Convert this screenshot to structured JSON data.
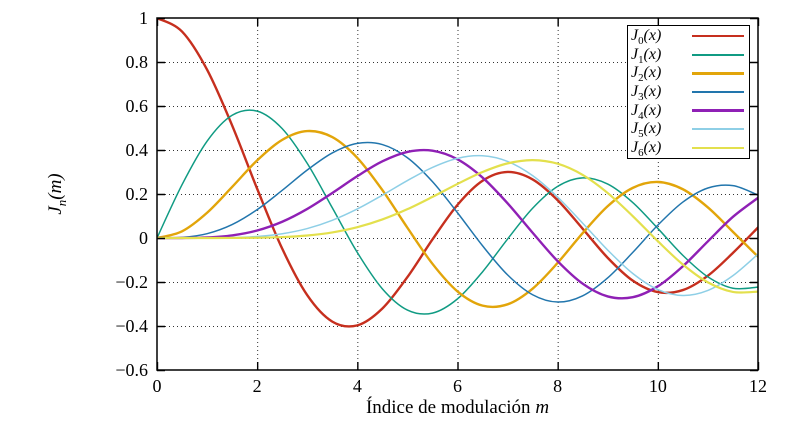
{
  "chart_data": {
    "type": "line",
    "title": "",
    "xlabel": "Índice de modulación m",
    "xlabel_parts": {
      "text": "Índice de modulación",
      "var": "m"
    },
    "ylabel": "Jn(m)",
    "ylabel_parts": {
      "base": "J",
      "sub": "n",
      "rest": "(m)"
    },
    "xlim": [
      0,
      12
    ],
    "ylim": [
      -0.6,
      1
    ],
    "x_ticks": [
      0,
      2,
      4,
      6,
      8,
      10,
      12
    ],
    "x_tick_labels": [
      "0",
      "2",
      "4",
      "6",
      "8",
      "10",
      "12"
    ],
    "y_ticks": [
      1,
      0.8,
      0.6,
      0.4,
      0.2,
      0,
      -0.2,
      -0.4,
      -0.6
    ],
    "y_tick_labels": [
      "1",
      "0.8",
      "0.6",
      "0.4",
      "0.2",
      "0",
      "−0.2",
      "−0.4",
      "−0.6"
    ],
    "grid": "dotted",
    "legend_position": "top-right",
    "axis_color": "#000000",
    "grid_color": "#333333",
    "x": [
      0,
      0.5,
      1,
      1.5,
      2,
      2.5,
      3,
      3.5,
      4,
      4.5,
      5,
      5.5,
      6,
      6.5,
      7,
      7.5,
      8,
      8.5,
      9,
      9.5,
      10,
      10.5,
      11,
      11.5,
      12
    ],
    "series": [
      {
        "name": "J0(x)",
        "label_base": "J",
        "label_sub": "0",
        "label_rest": "(x)",
        "color": "#c62f1e",
        "width": 2.4,
        "values": [
          1.0,
          0.9385,
          0.7652,
          0.5118,
          0.2239,
          -0.0484,
          -0.2601,
          -0.3801,
          -0.3971,
          -0.3205,
          -0.1776,
          -0.0068,
          0.1506,
          0.2601,
          0.3001,
          0.2663,
          0.1717,
          0.0419,
          -0.0903,
          -0.1939,
          -0.2459,
          -0.2366,
          -0.1712,
          -0.0677,
          0.0477
        ]
      },
      {
        "name": "J1(x)",
        "label_base": "J",
        "label_sub": "1",
        "label_rest": "(x)",
        "color": "#109b83",
        "width": 1.5,
        "values": [
          0,
          0.2423,
          0.4401,
          0.5579,
          0.5767,
          0.4971,
          0.3391,
          0.1374,
          -0.066,
          -0.2311,
          -0.3276,
          -0.3414,
          -0.2767,
          -0.1538,
          -0.0047,
          0.1352,
          0.2346,
          0.2731,
          0.2453,
          0.1613,
          0.0435,
          -0.0789,
          -0.1768,
          -0.2284,
          -0.2234
        ]
      },
      {
        "name": "J2(x)",
        "label_base": "J",
        "label_sub": "2",
        "label_rest": "(x)",
        "color": "#e2a50a",
        "width": 2.4,
        "values": [
          0,
          0.0306,
          0.1149,
          0.2321,
          0.3528,
          0.4461,
          0.4861,
          0.4586,
          0.3641,
          0.2178,
          0.0466,
          -0.1173,
          -0.2428,
          -0.3074,
          -0.3014,
          -0.2302,
          -0.113,
          0.0223,
          0.1448,
          0.2279,
          0.2546,
          0.2216,
          0.139,
          0.028,
          -0.0849
        ]
      },
      {
        "name": "J3(x)",
        "label_base": "J",
        "label_sub": "3",
        "label_rest": "(x)",
        "color": "#2276ad",
        "width": 1.5,
        "values": [
          0,
          0.0026,
          0.0196,
          0.061,
          0.1289,
          0.2166,
          0.3091,
          0.3868,
          0.4302,
          0.4247,
          0.3648,
          0.2561,
          0.1148,
          -0.0353,
          -0.1676,
          -0.258,
          -0.2911,
          -0.2626,
          -0.1809,
          -0.0653,
          0.0584,
          0.1633,
          0.2273,
          0.2381,
          0.1951
        ]
      },
      {
        "name": "J4(x)",
        "label_base": "J",
        "label_sub": "4",
        "label_rest": "(x)",
        "color": "#8f20b5",
        "width": 2.4,
        "values": [
          0,
          0.0,
          0.0025,
          0.0118,
          0.034,
          0.0738,
          0.132,
          0.2045,
          0.2811,
          0.3484,
          0.3912,
          0.3967,
          0.3576,
          0.2748,
          0.1578,
          0.0238,
          -0.1054,
          -0.2077,
          -0.2655,
          -0.2691,
          -0.2196,
          -0.1283,
          -0.015,
          0.0962,
          0.1825
        ]
      },
      {
        "name": "J5(x)",
        "label_base": "J",
        "label_sub": "5",
        "label_rest": "(x)",
        "color": "#8ecfe6",
        "width": 1.5,
        "values": [
          0,
          0.0,
          0.0002,
          0.0018,
          0.007,
          0.0195,
          0.043,
          0.0806,
          0.1321,
          0.1947,
          0.2611,
          0.3209,
          0.3621,
          0.3736,
          0.3479,
          0.2834,
          0.1858,
          0.0671,
          -0.055,
          -0.1613,
          -0.2341,
          -0.2611,
          -0.2383,
          -0.1712,
          -0.0735
        ]
      },
      {
        "name": "J6(x)",
        "label_base": "J",
        "label_sub": "6",
        "label_rest": "(x)",
        "color": "#e3e04d",
        "width": 2.2,
        "values": [
          0,
          0,
          0.0,
          0.0002,
          0.0012,
          0.0042,
          0.0114,
          0.0254,
          0.0491,
          0.0843,
          0.131,
          0.1868,
          0.2458,
          0.2999,
          0.3392,
          0.3541,
          0.3376,
          0.2867,
          0.2043,
          0.0993,
          -0.0145,
          -0.1204,
          -0.2016,
          -0.2451,
          -0.2438
        ]
      }
    ]
  }
}
